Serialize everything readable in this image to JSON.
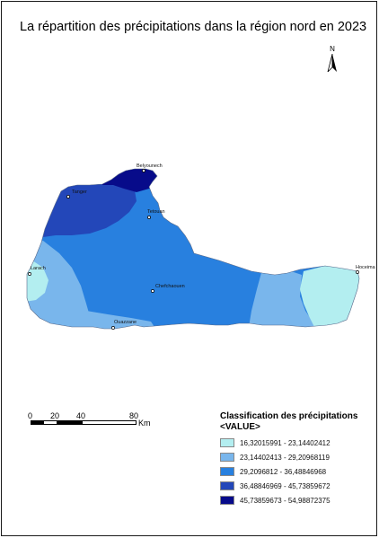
{
  "title": "La répartition des précipitations dans la région nord en 2023",
  "north_label": "N",
  "cities": [
    {
      "key": "belyounech",
      "name": "Belyounech"
    },
    {
      "key": "tanger",
      "name": "Tanger"
    },
    {
      "key": "tetouan",
      "name": "Tetouan"
    },
    {
      "key": "larach",
      "name": "Larach"
    },
    {
      "key": "chefchaouen",
      "name": "Chefchaouen"
    },
    {
      "key": "ouazzane",
      "name": "Ouazzane"
    },
    {
      "key": "hoceima",
      "name": "Hoceima"
    }
  ],
  "scale": {
    "labels": [
      "0",
      "20",
      "40",
      "80"
    ],
    "unit": "Km"
  },
  "legend": {
    "title": "Classification des précipitations",
    "field": "<VALUE>",
    "classes": [
      {
        "label": "16,32015991 - 23,14402412",
        "color": "#b3eef0"
      },
      {
        "label": "23,14402413 - 29,20968119",
        "color": "#79b6ec"
      },
      {
        "label": "29,2096812 - 36,48846968",
        "color": "#2880df"
      },
      {
        "label": "36,48846969 - 45,73859672",
        "color": "#2347b9"
      },
      {
        "label": "45,73859673 - 54,98872375",
        "color": "#070b8a"
      }
    ]
  }
}
